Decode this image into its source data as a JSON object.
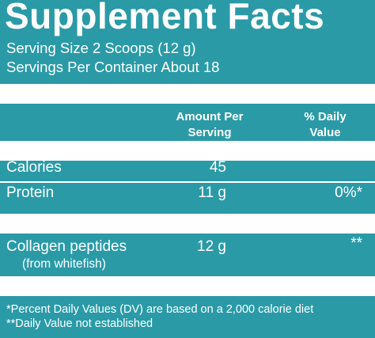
{
  "title": "Supplement Facts",
  "serving_size": "Serving Size 2 Scoops (12 g)",
  "servings_per_container": "Servings Per Container About 18",
  "columns": {
    "amount_line1": "Amount Per",
    "amount_line2": "Serving",
    "dv_line1": "% Daily",
    "dv_line2": "Value"
  },
  "rows": [
    {
      "label": "Calories",
      "amount": "45",
      "dv": ""
    },
    {
      "label": "Protein",
      "amount": "11 g",
      "dv": "0%*"
    },
    {
      "label": "Collagen peptides",
      "sublabel": "(from whitefish)",
      "amount": "12 g",
      "dv": "**"
    }
  ],
  "footnotes": [
    "*Percent Daily Values (DV) are based on a 2,000 calorie diet",
    "**Daily Value not established"
  ],
  "colors": {
    "background": "#2a9aa7",
    "rules": "#ffffff",
    "text": "#ffffff"
  }
}
